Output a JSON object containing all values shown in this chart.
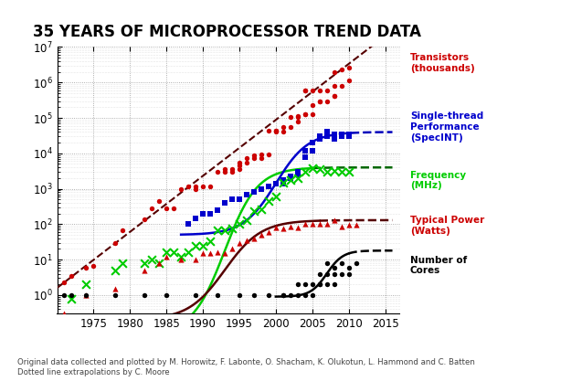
{
  "title": "35 YEARS OF MICROPROCESSOR TREND DATA",
  "footnote": "Original data collected and plotted by M. Horowitz, F. Labonte, O. Shacham, K. Olukotun, L. Hammond and C. Batten\nDotted line extrapolations by C. Moore",
  "xlim": [
    1970,
    2017
  ],
  "ylim": [
    0.3,
    10000000.0
  ],
  "xticks": [
    1975,
    1980,
    1985,
    1990,
    1995,
    2000,
    2005,
    2010,
    2015
  ],
  "transistors_scatter": {
    "x": [
      1971,
      1972,
      1974,
      1975,
      1978,
      1979,
      1982,
      1983,
      1984,
      1985,
      1986,
      1987,
      1988,
      1989,
      1989,
      1990,
      1991,
      1992,
      1993,
      1993,
      1994,
      1994,
      1995,
      1995,
      1995,
      1996,
      1996,
      1997,
      1997,
      1998,
      1998,
      1999,
      1999,
      2000,
      2000,
      2000,
      2001,
      2001,
      2002,
      2002,
      2003,
      2003,
      2003,
      2004,
      2004,
      2004,
      2004,
      2005,
      2005,
      2005,
      2006,
      2006,
      2006,
      2007,
      2007,
      2008,
      2008,
      2008,
      2008,
      2009,
      2009,
      2010,
      2010
    ],
    "y": [
      2.3,
      3.5,
      6,
      6.5,
      29,
      68,
      134,
      275,
      450,
      275,
      275,
      1000,
      1200,
      1180,
      1000,
      1200,
      1200,
      3100,
      3100,
      3500,
      3100,
      3500,
      5500,
      4500,
      3500,
      5500,
      7500,
      7500,
      8800,
      7500,
      9500,
      9500,
      44000,
      42000,
      44000,
      44000,
      42000,
      55000,
      55000,
      105000,
      77000,
      111000,
      105000,
      125000,
      592000,
      592000,
      125000,
      230000,
      125000,
      592000,
      291000,
      582000,
      291000,
      582000,
      291000,
      410000,
      820000,
      410000,
      1900000,
      820000,
      2300000,
      1170000,
      2600000
    ],
    "color": "#cc0000",
    "marker": "o",
    "size": 15
  },
  "specint_scatter": {
    "x": [
      1988,
      1989,
      1990,
      1991,
      1992,
      1993,
      1994,
      1995,
      1996,
      1997,
      1998,
      1999,
      2000,
      2001,
      2001,
      2002,
      2002,
      2003,
      2003,
      2004,
      2004,
      2004,
      2005,
      2005,
      2005,
      2006,
      2006,
      2006,
      2007,
      2007,
      2007,
      2008,
      2008,
      2009,
      2009,
      2010,
      2010
    ],
    "y": [
      100,
      150,
      200,
      200,
      250,
      400,
      500,
      500,
      700,
      800,
      1000,
      1200,
      1400,
      1800,
      1400,
      2000,
      2200,
      3000,
      2500,
      8000,
      12000,
      8000,
      20000,
      12000,
      20000,
      25000,
      30000,
      25000,
      30000,
      40000,
      30000,
      35000,
      25000,
      35000,
      30000,
      35000,
      30000
    ],
    "color": "#0000cc",
    "marker": "s",
    "size": 15
  },
  "frequency_scatter": {
    "x": [
      1971,
      1972,
      1974,
      1978,
      1979,
      1982,
      1983,
      1984,
      1985,
      1986,
      1987,
      1988,
      1989,
      1990,
      1991,
      1992,
      1993,
      1994,
      1995,
      1996,
      1997,
      1998,
      1999,
      2000,
      2001,
      2002,
      2003,
      2004,
      2005,
      2006,
      2007,
      2008,
      2009,
      2010
    ],
    "y": [
      0.108,
      0.8,
      2,
      5,
      8,
      8,
      10,
      8,
      16,
      16,
      12,
      16,
      25,
      25,
      33,
      66,
      66,
      75,
      100,
      133,
      233,
      266,
      450,
      600,
      1500,
      1800,
      2000,
      3000,
      3800,
      3600,
      3000,
      3166,
      3000,
      3000
    ],
    "color": "#00cc00",
    "marker": "x",
    "size": 40
  },
  "power_scatter": {
    "x": [
      1971,
      1974,
      1978,
      1982,
      1984,
      1985,
      1987,
      1989,
      1990,
      1991,
      1992,
      1993,
      1994,
      1995,
      1996,
      1997,
      1998,
      1999,
      2000,
      2001,
      2002,
      2003,
      2004,
      2005,
      2006,
      2007,
      2008,
      2009,
      2010,
      2011
    ],
    "y": [
      0.3,
      1,
      1.5,
      5,
      8,
      12,
      10,
      10,
      15,
      15,
      16,
      15,
      20,
      30,
      35,
      40,
      50,
      60,
      80,
      75,
      85,
      82,
      103,
      100,
      103,
      100,
      130,
      85,
      95,
      95
    ],
    "color": "#cc0000",
    "marker": "^",
    "size": 20
  },
  "cores_scatter": {
    "x": [
      1971,
      1972,
      1974,
      1978,
      1982,
      1985,
      1989,
      1992,
      1995,
      1997,
      1999,
      2001,
      2001,
      2002,
      2003,
      2003,
      2004,
      2004,
      2005,
      2005,
      2006,
      2006,
      2006,
      2007,
      2007,
      2007,
      2008,
      2008,
      2008,
      2009,
      2009,
      2010,
      2010,
      2011
    ],
    "y": [
      1,
      1,
      1,
      1,
      1,
      1,
      1,
      1,
      1,
      1,
      1,
      1,
      1,
      1,
      1,
      2,
      1,
      2,
      1,
      2,
      2,
      4,
      2,
      2,
      4,
      8,
      2,
      4,
      6,
      4,
      8,
      4,
      6,
      8
    ],
    "color": "#000000",
    "marker": "o",
    "size": 15
  },
  "legend_labels": [
    {
      "text": "Transistors\n(thousands)",
      "color": "#cc0000",
      "yf": 0.94
    },
    {
      "text": "Single-thread\nPerformance\n(SpecINT)",
      "color": "#0000cc",
      "yf": 0.7
    },
    {
      "text": "Frequency\n(MHz)",
      "color": "#00cc00",
      "yf": 0.5
    },
    {
      "text": "Typical Power\n(Watts)",
      "color": "#cc0000",
      "yf": 0.33
    },
    {
      "text": "Number of\nCores",
      "color": "#000000",
      "yf": 0.18
    }
  ],
  "background_color": "#ffffff",
  "grid_color": "#999999",
  "grid_style": ":"
}
